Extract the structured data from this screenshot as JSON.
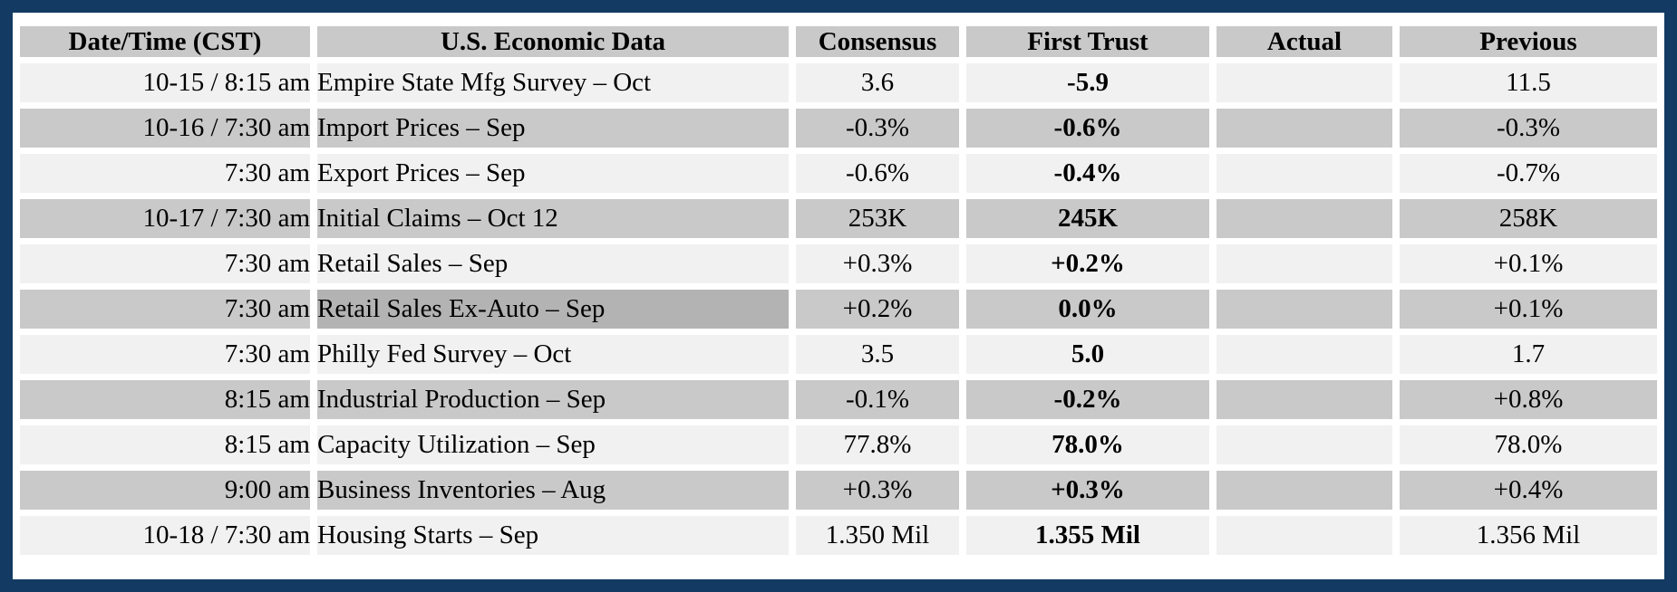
{
  "colors": {
    "frame_border": "#123a62",
    "header_bg": "#c9c9c9",
    "row_light": "#f1f1f1",
    "row_dark": "#c9c9c9",
    "highlight_cell": "#b3b3b3",
    "text": "#000000"
  },
  "table": {
    "columns": [
      "Date/Time (CST)",
      "U.S. Economic Data",
      "Consensus",
      "First Trust",
      "Actual",
      "Previous"
    ],
    "rows": [
      {
        "datetime": "10-15 / 8:15 am",
        "event": "Empire State Mfg Survey – Oct",
        "consensus": "3.6",
        "first_trust": "-5.9",
        "actual": "",
        "previous": "11.5",
        "shade": "light",
        "event_highlight": false
      },
      {
        "datetime": "10-16 / 7:30 am",
        "event": "Import Prices – Sep",
        "consensus": "-0.3%",
        "first_trust": "-0.6%",
        "actual": "",
        "previous": "-0.3%",
        "shade": "dark",
        "event_highlight": false
      },
      {
        "datetime": "7:30 am",
        "event": "Export Prices – Sep",
        "consensus": "-0.6%",
        "first_trust": "-0.4%",
        "actual": "",
        "previous": "-0.7%",
        "shade": "light",
        "event_highlight": false
      },
      {
        "datetime": "10-17 / 7:30 am",
        "event": "Initial Claims – Oct 12",
        "consensus": "253K",
        "first_trust": "245K",
        "actual": "",
        "previous": "258K",
        "shade": "dark",
        "event_highlight": false
      },
      {
        "datetime": "7:30 am",
        "event": "Retail Sales – Sep",
        "consensus": "+0.3%",
        "first_trust": "+0.2%",
        "actual": "",
        "previous": "+0.1%",
        "shade": "light",
        "event_highlight": false
      },
      {
        "datetime": "7:30 am",
        "event": "Retail Sales Ex-Auto – Sep",
        "consensus": "+0.2%",
        "first_trust": "0.0%",
        "actual": "",
        "previous": "+0.1%",
        "shade": "dark",
        "event_highlight": true
      },
      {
        "datetime": "7:30 am",
        "event": "Philly Fed Survey – Oct",
        "consensus": "3.5",
        "first_trust": "5.0",
        "actual": "",
        "previous": "1.7",
        "shade": "light",
        "event_highlight": false
      },
      {
        "datetime": "8:15 am",
        "event": "Industrial Production – Sep",
        "consensus": "-0.1%",
        "first_trust": "-0.2%",
        "actual": "",
        "previous": "+0.8%",
        "shade": "dark",
        "event_highlight": false
      },
      {
        "datetime": "8:15 am",
        "event": "Capacity Utilization – Sep",
        "consensus": "77.8%",
        "first_trust": "78.0%",
        "actual": "",
        "previous": "78.0%",
        "shade": "light",
        "event_highlight": false
      },
      {
        "datetime": "9:00 am",
        "event": "Business Inventories – Aug",
        "consensus": "+0.3%",
        "first_trust": "+0.3%",
        "actual": "",
        "previous": "+0.4%",
        "shade": "dark",
        "event_highlight": false
      },
      {
        "datetime": "10-18 / 7:30 am",
        "event": "Housing Starts – Sep",
        "consensus": "1.350 Mil",
        "first_trust": "1.355 Mil",
        "actual": "",
        "previous": "1.356 Mil",
        "shade": "light",
        "event_highlight": false
      }
    ]
  }
}
